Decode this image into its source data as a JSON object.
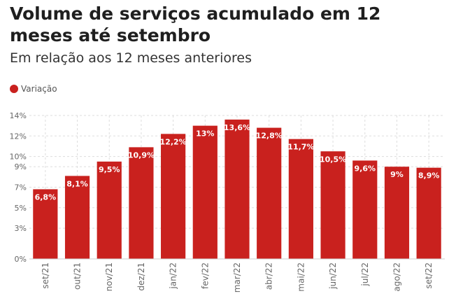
{
  "header": {
    "title": "Volume de serviços acumulado em 12 meses até setembro",
    "subtitle": "Em relação aos 12 meses anteriores"
  },
  "legend": {
    "label": "Variação",
    "color": "#c9211e"
  },
  "chart_data": {
    "type": "bar",
    "categories": [
      "set/21",
      "out/21",
      "nov/21",
      "dez/21",
      "jan/22",
      "fev/22",
      "mar/22",
      "abr/22",
      "mai/22",
      "jun/22",
      "jul/22",
      "ago/22",
      "set/22"
    ],
    "series": [
      {
        "name": "Variação",
        "color": "#c9211e",
        "values": [
          6.8,
          8.1,
          9.5,
          10.9,
          12.2,
          13,
          13.6,
          12.8,
          11.7,
          10.5,
          9.6,
          9,
          8.9
        ],
        "labels": [
          "6,8%",
          "8,1%",
          "9,5%",
          "10,9%",
          "12,2%",
          "13%",
          "13,6%",
          "12,8%",
          "11,7%",
          "10,5%",
          "9,6%",
          "9%",
          "8,9%"
        ]
      }
    ],
    "yticks": [
      0,
      3,
      5,
      7,
      9,
      10,
      12,
      14
    ],
    "ytick_labels": [
      "0%",
      "3%",
      "5%",
      "7%",
      "9%",
      "10%",
      "12%",
      "14%"
    ],
    "ylim": [
      0,
      14
    ],
    "xlabel": "",
    "ylabel": "",
    "grid": true,
    "legend_position": "top-left"
  }
}
